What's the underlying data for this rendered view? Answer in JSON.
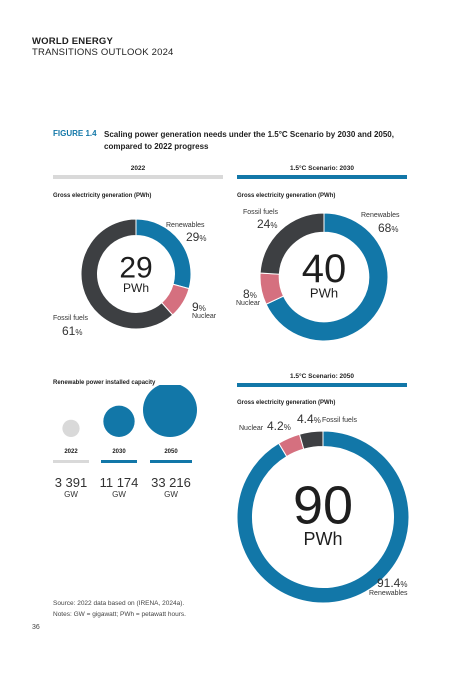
{
  "header": {
    "line1": "WORLD ENERGY",
    "line2": "TRANSITIONS OUTLOOK 2024"
  },
  "figure": {
    "label": "FIGURE 1.4",
    "title": "Scaling power generation needs under the 1.5°C Scenario by 2030 and 2050, compared to 2022 progress"
  },
  "colors": {
    "renewables": "#1277a8",
    "fossil": "#3d3f42",
    "nuclear": "#d5707f",
    "grey_bar": "#d9d9d9",
    "circle_2022": "#d9d9d9"
  },
  "sections": {
    "s2022": {
      "bar_label": "2022",
      "subtitle": "Gross electricity generation (PWh)"
    },
    "s2030": {
      "bar_label": "1.5°C Scenario: 2030",
      "subtitle": "Gross electricity generation (PWh)"
    },
    "s2050": {
      "bar_label": "1.5°C Scenario: 2050",
      "subtitle": "Gross electricity generation (PWh)"
    },
    "capacity": {
      "subtitle": "Renewable power installed capacity"
    }
  },
  "chart_data": [
    {
      "type": "pie",
      "name": "2022",
      "total": "29",
      "unit": "PWh",
      "slices": [
        {
          "label": "Renewables",
          "pct": "29",
          "value": 29,
          "color": "#1277a8"
        },
        {
          "label": "Nuclear",
          "pct": "9",
          "value": 9,
          "color": "#d5707f"
        },
        {
          "label": "Fossil fuels",
          "pct": "61",
          "value": 61,
          "color": "#3d3f42"
        }
      ]
    },
    {
      "type": "pie",
      "name": "1.5°C Scenario: 2030",
      "total": "40",
      "unit": "PWh",
      "slices": [
        {
          "label": "Renewables",
          "pct": "68",
          "value": 68,
          "color": "#1277a8"
        },
        {
          "label": "Nuclear",
          "pct": "8",
          "value": 8,
          "color": "#d5707f"
        },
        {
          "label": "Fossil fuels",
          "pct": "24",
          "value": 24,
          "color": "#3d3f42"
        }
      ]
    },
    {
      "type": "pie",
      "name": "1.5°C Scenario: 2050",
      "total": "90",
      "unit": "PWh",
      "slices": [
        {
          "label": "Renewables",
          "pct": "91.4",
          "value": 91.4,
          "color": "#1277a8"
        },
        {
          "label": "Nuclear",
          "pct": "4.2",
          "value": 4.2,
          "color": "#d5707f"
        },
        {
          "label": "Fossil fuels",
          "pct": "4.4",
          "value": 4.4,
          "color": "#3d3f42"
        }
      ]
    },
    {
      "type": "bubble",
      "title": "Renewable power installed capacity",
      "categories": [
        "2022",
        "2030",
        "2050"
      ],
      "values": [
        3391,
        11174,
        33216
      ],
      "value_labels": [
        "3 391",
        "11 174",
        "33 216"
      ],
      "unit": "GW"
    }
  ],
  "pct_sign": "%",
  "footer": {
    "source": "Source: 2022 data based on (IRENA, 2024a).",
    "notes": "Notes: GW = gigawatt; PWh = petawatt hours."
  },
  "page_number": "36"
}
